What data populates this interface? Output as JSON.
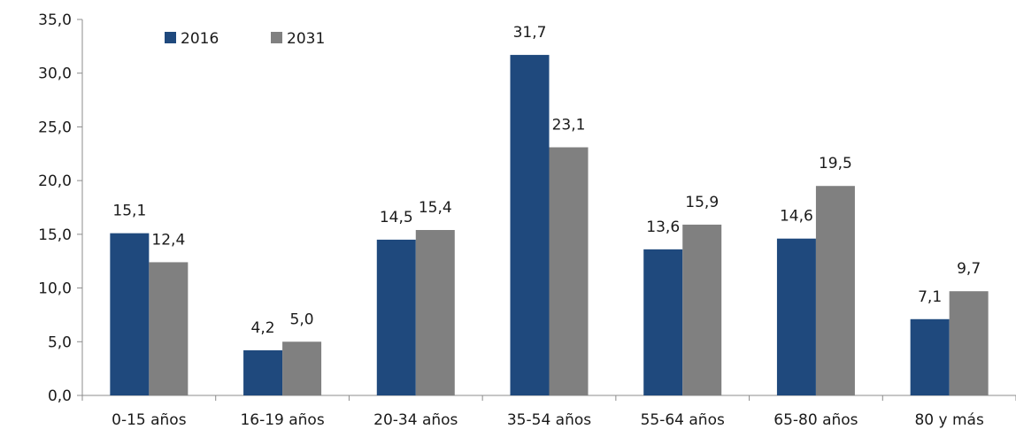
{
  "chart_data": {
    "type": "bar",
    "categories": [
      "0-15 años",
      "16-19 años",
      "20-34 años",
      "35-54 años",
      "55-64 años",
      "65-80 años",
      "80 y más"
    ],
    "series": [
      {
        "name": "2016",
        "values": [
          15.1,
          4.2,
          14.5,
          31.7,
          13.6,
          14.6,
          7.1
        ],
        "color": "#1f497d"
      },
      {
        "name": "2031",
        "values": [
          12.4,
          5.0,
          15.4,
          23.1,
          15.9,
          19.5,
          9.7
        ],
        "color": "#808080"
      }
    ],
    "data_labels": [
      [
        "15,1",
        "4,2",
        "14,5",
        "31,7",
        "13,6",
        "14,6",
        "7,1"
      ],
      [
        "12,4",
        "5,0",
        "15,4",
        "23,1",
        "15,9",
        "19,5",
        "9,7"
      ]
    ],
    "y_ticks": [
      "0,0",
      "5,0",
      "10,0",
      "15,0",
      "20,0",
      "25,0",
      "30,0",
      "35,0"
    ],
    "ylim": [
      0,
      35
    ],
    "grid": false,
    "legend_position": "top-left",
    "title": "",
    "xlabel": "",
    "ylabel": ""
  }
}
